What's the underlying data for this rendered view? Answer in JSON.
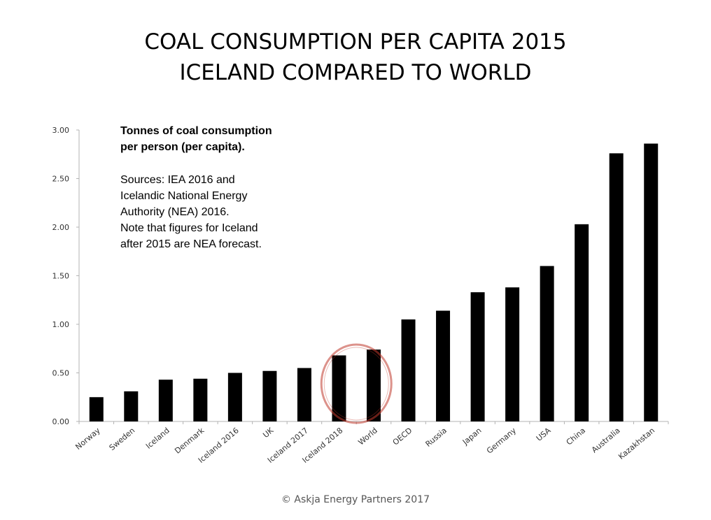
{
  "title": {
    "line1": "COAL CONSUMPTION PER CAPITA 2015",
    "line2": "ICELAND COMPARED TO WORLD"
  },
  "note": {
    "bold_line1": "Tonnes of coal consumption",
    "bold_line2": "per person (per capita).",
    "line1": "Sources: IEA 2016 and",
    "line2": "Icelandic National Energy",
    "line3": "Authority (NEA) 2016.",
    "line4": "Note that figures for Iceland",
    "line5": "after 2015 are NEA forecast."
  },
  "footer": "© Askja Energy Partners 2017",
  "chart_data": {
    "type": "bar",
    "categories": [
      "Norway",
      "Sweden",
      "Iceland",
      "Denmark",
      "Iceland 2016",
      "UK",
      "Iceland 2017",
      "Iceland 2018",
      "World",
      "OECD",
      "Russia",
      "Japan",
      "Germany",
      "USA",
      "China",
      "Australia",
      "Kazakhstan"
    ],
    "values": [
      0.25,
      0.31,
      0.43,
      0.44,
      0.5,
      0.52,
      0.55,
      0.68,
      0.74,
      1.05,
      1.14,
      1.33,
      1.38,
      1.6,
      2.03,
      2.76,
      2.86
    ],
    "ylim": [
      0,
      3
    ],
    "yticks": [
      "0.00",
      "0.50",
      "1.00",
      "1.50",
      "2.00",
      "2.50",
      "3.00"
    ],
    "bar_color": "#000000",
    "highlight": {
      "categories": [
        "Iceland 2018",
        "World"
      ],
      "shape": "ellipse",
      "color": "#c0392b"
    },
    "grid": false
  }
}
